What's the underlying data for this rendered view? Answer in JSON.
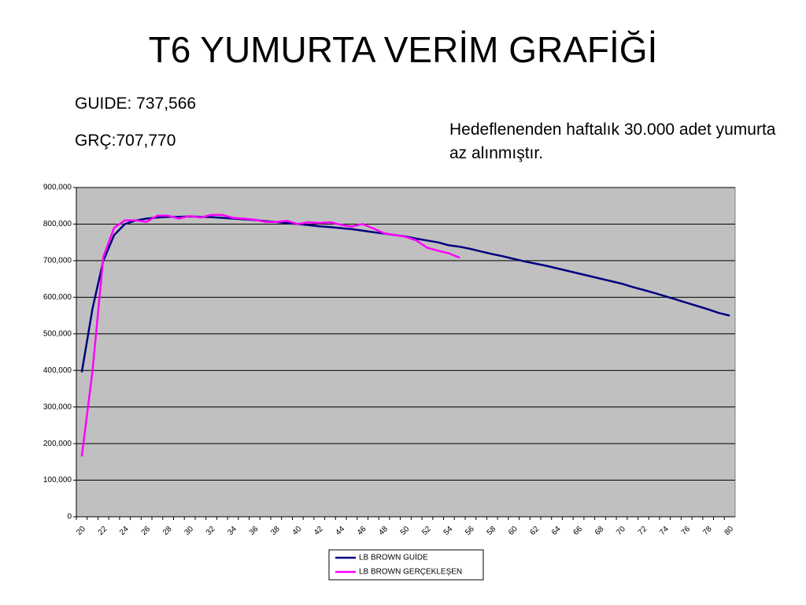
{
  "chart_data": {
    "type": "line",
    "title": "T6  YUMURTA VERİM GRAFİĞİ",
    "annotations": [
      "GUIDE: 737,566",
      "GRÇ:707,770",
      "Hedeflenenden haftalık 30.000 adet yumurta az alınmıştır."
    ],
    "categories": [
      "20",
      null,
      "22",
      null,
      "24",
      null,
      "26",
      null,
      "28",
      null,
      "30",
      null,
      "32",
      null,
      "34",
      null,
      "36",
      null,
      "38",
      null,
      "40",
      null,
      "42",
      null,
      "44",
      null,
      "46",
      null,
      "48",
      null,
      "50",
      null,
      "52",
      null,
      "54",
      null,
      "56",
      null,
      "58",
      null,
      "60",
      null,
      "62",
      null,
      "64",
      null,
      "66",
      null,
      "68",
      null,
      "70",
      null,
      "72",
      null,
      "74",
      null,
      "76",
      null,
      "78",
      null,
      "80"
    ],
    "series": [
      {
        "name": "LB BROWN GUİDE",
        "color": "#000080",
        "values": [
          395000,
          570000,
          700000,
          770000,
          800000,
          810000,
          815000,
          818000,
          820000,
          820000,
          821000,
          820000,
          819000,
          817000,
          815000,
          813000,
          811000,
          808000,
          806000,
          803000,
          800000,
          797000,
          794000,
          792000,
          789000,
          786000,
          782000,
          778000,
          774000,
          770000,
          766000,
          760000,
          755000,
          750000,
          742000,
          738000,
          732000,
          725000,
          718000,
          712000,
          705000,
          698000,
          692000,
          686000,
          679000,
          672000,
          665000,
          658000,
          651000,
          644000,
          637000,
          628000,
          620000,
          612000,
          603000,
          594000,
          585000,
          576000,
          567000,
          557000,
          550000
        ]
      },
      {
        "name": "LB BROWN  GERÇEKLEŞEN",
        "color": "#ff00ff",
        "values": [
          165000,
          400000,
          710000,
          790000,
          810000,
          810000,
          806000,
          823000,
          823000,
          815000,
          822000,
          818000,
          825000,
          825000,
          817000,
          815000,
          812000,
          806000,
          806000,
          809000,
          800000,
          805000,
          803000,
          805000,
          798000,
          793000,
          800000,
          788000,
          775000,
          770000,
          765000,
          755000,
          735000,
          727000,
          720000,
          708000,
          null,
          null,
          null,
          null,
          null,
          null,
          null,
          null,
          null,
          null,
          null,
          null,
          null,
          null,
          null,
          null,
          null,
          null,
          null,
          null,
          null,
          null,
          null,
          null,
          null
        ]
      }
    ],
    "ylim": [
      0,
      900000
    ],
    "yticks": [
      0,
      {
        "value": 100000,
        "label": "100,000"
      },
      {
        "value": 200000,
        "label": "200,000"
      },
      {
        "value": 300000,
        "label": "300,000"
      },
      {
        "value": 400000,
        "label": "400,000"
      },
      {
        "value": 500000,
        "label": "500,000"
      },
      {
        "value": 600000,
        "label": "600,000"
      },
      {
        "value": 700000,
        "label": "700,000"
      },
      {
        "value": 800000,
        "label": "800,000"
      },
      {
        "value": 900000,
        "label": "900,000"
      }
    ],
    "grid": true,
    "plot_background": "#c0c0c0",
    "legend": "bottom"
  }
}
